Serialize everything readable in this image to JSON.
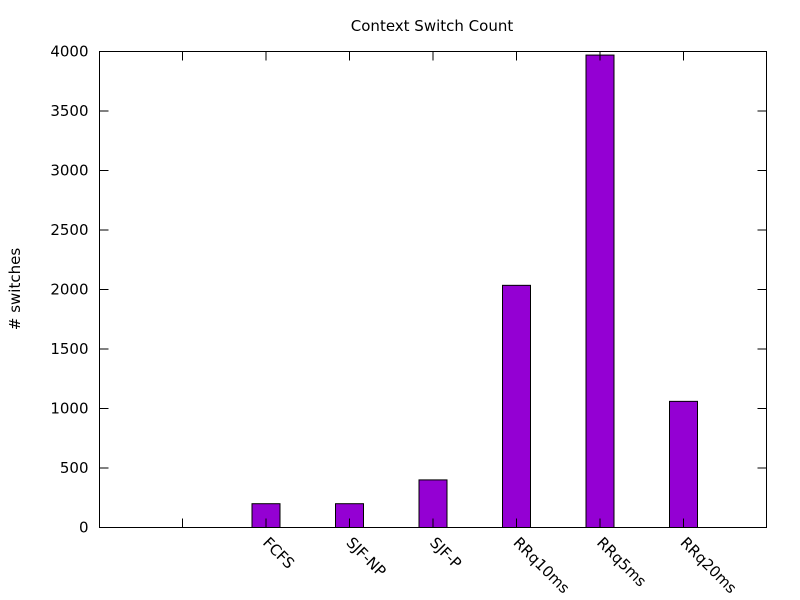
{
  "chart_data": {
    "type": "bar",
    "title": "Context Switch Count",
    "xlabel": "",
    "ylabel": "# switches",
    "categories": [
      "",
      "FCFS",
      "SJF-NP",
      "SJF-P",
      "RRq10ms",
      "RRq5ms",
      "RRq20ms"
    ],
    "values": [
      null,
      200,
      200,
      400,
      2035,
      3970,
      1060
    ],
    "ylim": [
      0,
      4000
    ],
    "yticks": [
      0,
      500,
      1000,
      1500,
      2000,
      2500,
      3000,
      3500,
      4000
    ],
    "grid": false,
    "legend": "none",
    "bar_color": "#9400d3"
  }
}
